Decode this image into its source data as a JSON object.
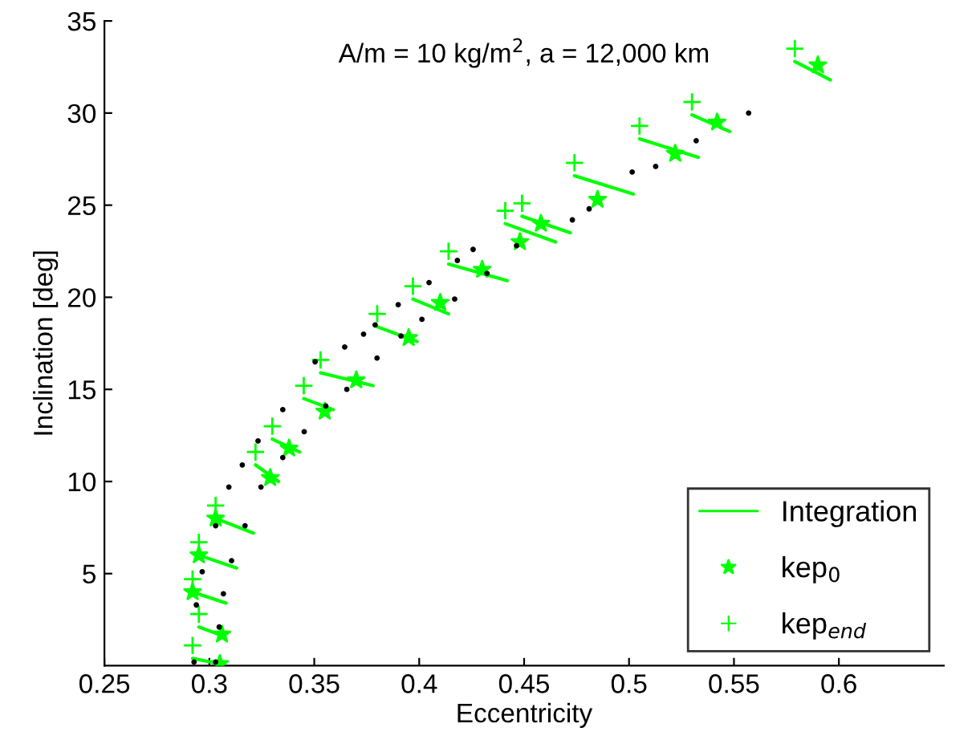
{
  "chart_data": {
    "type": "scatter",
    "title": "A/m = 10 kg/m$^{2}$, a = 12,000 km",
    "xlabel": "Eccentricity",
    "ylabel": "Inclination [deg]",
    "xlim": [
      0.25,
      0.65
    ],
    "ylim": [
      0,
      35
    ],
    "xticks": [
      0.25,
      0.3,
      0.35,
      0.4,
      0.45,
      0.5,
      0.55,
      0.6
    ],
    "yticks": [
      5,
      10,
      15,
      20,
      25,
      30,
      35
    ],
    "grid": false,
    "legend": "bottom right",
    "series": [
      {
        "color": "#000000",
        "marker": "circle",
        "x": [
          0.2927,
          0.2938,
          0.2966,
          0.303,
          0.3093,
          0.3157,
          0.3232,
          0.335,
          0.3504,
          0.3645,
          0.3735,
          0.379,
          0.39,
          0.4047,
          0.4182,
          0.4257,
          0.303,
          0.3047,
          0.3067,
          0.3106,
          0.317,
          0.3246,
          0.335,
          0.3452,
          0.3555,
          0.3655,
          0.3799,
          0.3913,
          0.4013,
          0.4169,
          0.4323,
          0.4464,
          0.473,
          0.481,
          0.5015,
          0.5127,
          0.532,
          0.557
        ],
        "values": [
          0.2,
          3.3,
          5.1,
          7.6,
          9.7,
          10.9,
          12.2,
          13.9,
          16.5,
          17.3,
          18.0,
          18.5,
          19.6,
          20.8,
          22.0,
          22.6,
          0.2,
          2.1,
          3.9,
          5.7,
          7.6,
          9.7,
          11.3,
          12.7,
          14.1,
          15.0,
          16.7,
          17.9,
          18.8,
          19.9,
          21.3,
          22.8,
          24.2,
          24.8,
          26.8,
          27.1,
          28.5,
          30.0
        ]
      },
      {
        "type": "line",
        "name": "Integration",
        "color": "#00ff00",
        "line_style": "solid",
        "marker": "none",
        "x": [
          0.579,
          0.596,
          null,
          0.53,
          0.548,
          null,
          0.505,
          0.533,
          null,
          0.474,
          0.502,
          null,
          0.449,
          0.472,
          null,
          0.441,
          0.465,
          null,
          0.414,
          0.442,
          null,
          0.397,
          0.414,
          null,
          0.38,
          0.399,
          null,
          0.353,
          0.378,
          null,
          0.345,
          0.359,
          null,
          0.33,
          0.343,
          null,
          0.322,
          0.333,
          null,
          0.303,
          0.321,
          null,
          0.295,
          0.313,
          null,
          0.292,
          0.308,
          null,
          0.295,
          0.307,
          null,
          0.292,
          0.305
        ],
        "values": [
          32.8,
          31.8,
          null,
          29.9,
          29.0,
          null,
          28.6,
          27.6,
          null,
          26.6,
          25.6,
          null,
          24.4,
          23.5,
          null,
          24.0,
          23.0,
          null,
          21.8,
          20.9,
          null,
          19.9,
          19.1,
          null,
          18.4,
          17.6,
          null,
          15.9,
          15.2,
          null,
          14.5,
          13.9,
          null,
          12.3,
          11.6,
          null,
          10.9,
          10.0,
          null,
          8.0,
          7.2,
          null,
          6.0,
          5.3,
          null,
          4.0,
          3.4,
          null,
          2.1,
          1.6,
          null,
          0.4,
          0.1
        ]
      },
      {
        "name": "kep$_{0}$",
        "color": "#00ff00",
        "marker": "star",
        "x": [
          0.59,
          0.542,
          0.522,
          0.485,
          0.458,
          0.448,
          0.43,
          0.41,
          0.395,
          0.37,
          0.355,
          0.338,
          0.329,
          0.303,
          0.295,
          0.292,
          0.306,
          0.305
        ],
        "values": [
          32.6,
          29.5,
          27.8,
          25.3,
          24.0,
          23.0,
          21.5,
          19.7,
          17.8,
          15.5,
          13.8,
          11.8,
          10.2,
          8.0,
          6.0,
          4.0,
          1.7,
          0.1
        ]
      },
      {
        "name": "kep$_{end}$",
        "color": "#00ff00",
        "marker": "cross",
        "x": [
          0.579,
          0.53,
          0.505,
          0.474,
          0.449,
          0.441,
          0.414,
          0.397,
          0.38,
          0.353,
          0.345,
          0.33,
          0.322,
          0.303,
          0.295,
          0.292,
          0.295,
          0.292
        ],
        "values": [
          33.5,
          30.6,
          29.3,
          27.3,
          25.1,
          24.7,
          22.5,
          20.6,
          19.1,
          16.6,
          15.2,
          13.0,
          11.6,
          8.7,
          6.7,
          4.7,
          2.8,
          1.1
        ]
      }
    ]
  }
}
